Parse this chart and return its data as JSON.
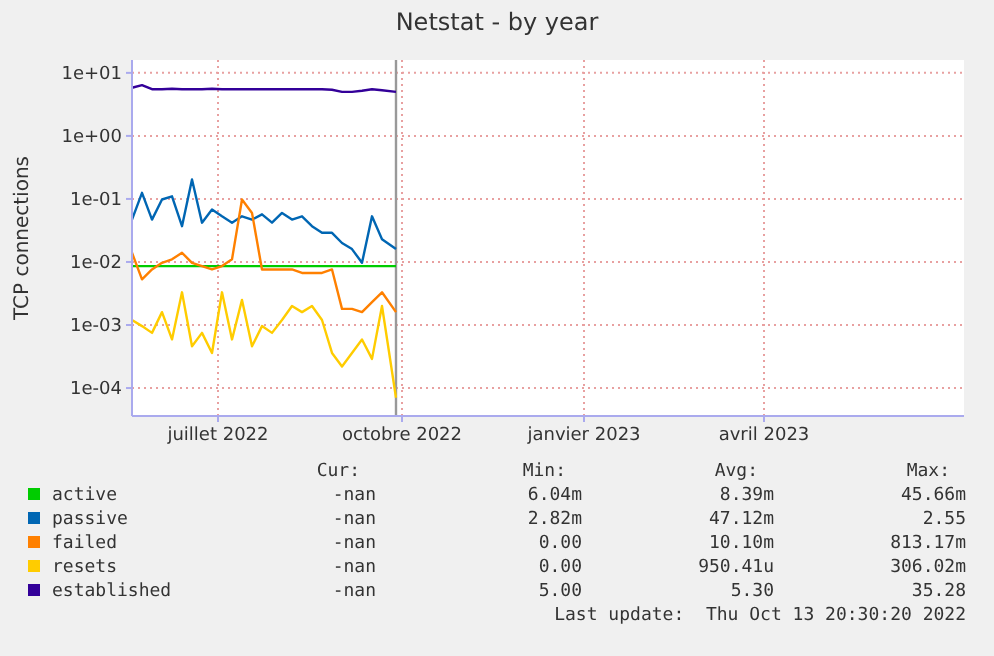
{
  "chart_data": {
    "type": "line",
    "title": "Netstat - by year",
    "ylabel": "TCP connections",
    "log": "y",
    "grid": true,
    "legend": "bottom",
    "x": [
      "2022-06-03",
      "2022-06-08",
      "2022-06-13",
      "2022-06-18",
      "2022-06-23",
      "2022-06-28",
      "2022-07-03",
      "2022-07-08",
      "2022-07-13",
      "2022-07-18",
      "2022-07-23",
      "2022-07-28",
      "2022-08-02",
      "2022-08-07",
      "2022-08-12",
      "2022-08-17",
      "2022-08-22",
      "2022-08-27",
      "2022-09-01",
      "2022-09-06",
      "2022-09-11",
      "2022-09-16",
      "2022-09-21",
      "2022-09-26",
      "2022-10-01",
      "2022-10-06",
      "2022-10-13"
    ],
    "xlim": [
      "2022-06-03",
      "2023-07-24"
    ],
    "xticks": [
      {
        "value": "2022-07-16",
        "label": "juillet 2022"
      },
      {
        "value": "2022-10-16",
        "label": "octobre 2022"
      },
      {
        "value": "2023-01-15",
        "label": "janvier 2023"
      },
      {
        "value": "2023-04-15",
        "label": "avril 2023"
      }
    ],
    "ylim": [
      3.6e-05,
      16
    ],
    "yticks": [
      {
        "value": 10,
        "label": "1e+01"
      },
      {
        "value": 1,
        "label": "1e+00"
      },
      {
        "value": 0.1,
        "label": "1e-01"
      },
      {
        "value": 0.01,
        "label": "1e-02"
      },
      {
        "value": 0.001,
        "label": "1e-03"
      },
      {
        "value": 0.0001,
        "label": "1e-04"
      }
    ],
    "series": [
      {
        "name": "active",
        "color": "#00cc00",
        "values": [
          0.0086,
          0.0086,
          0.0086,
          0.0086,
          0.0086,
          0.0086,
          0.0086,
          0.0086,
          0.0086,
          0.0086,
          0.0086,
          0.0086,
          0.0086,
          0.0086,
          0.0086,
          0.0086,
          0.0086,
          0.0086,
          0.0086,
          0.0086,
          0.0086,
          0.0086,
          0.0086,
          0.0086,
          0.0086,
          0.0086,
          0.0086
        ]
      },
      {
        "name": "passive",
        "color": "#0066b3",
        "values": [
          0.047,
          0.125,
          0.047,
          0.098,
          0.11,
          0.037,
          0.204,
          0.042,
          0.068,
          0.053,
          0.042,
          0.053,
          0.047,
          0.057,
          0.042,
          0.06,
          0.047,
          0.053,
          0.037,
          0.029,
          0.029,
          0.02,
          0.016,
          0.0097,
          0.053,
          0.023,
          0.016
        ]
      },
      {
        "name": "failed",
        "color": "#ff8000",
        "values": [
          0.014,
          0.0053,
          0.0076,
          0.0097,
          0.011,
          0.014,
          0.0097,
          0.0086,
          0.0076,
          0.0086,
          0.011,
          0.098,
          0.06,
          0.0076,
          0.0076,
          0.0076,
          0.0076,
          0.0067,
          0.0067,
          0.0067,
          0.0076,
          0.0018,
          0.0018,
          0.0016,
          0.0023,
          0.0033,
          0.0016
        ]
      },
      {
        "name": "resets",
        "color": "#ffcc00",
        "values": [
          0.0012,
          0.00096,
          0.00075,
          0.0016,
          0.00059,
          0.0033,
          0.00046,
          0.00075,
          0.00036,
          0.0033,
          0.00059,
          0.0025,
          0.00046,
          0.00096,
          0.00075,
          0.0012,
          0.002,
          0.0016,
          0.002,
          0.0012,
          0.00036,
          0.00022,
          0.00036,
          0.00059,
          0.00029,
          0.002,
          7e-05
        ]
      },
      {
        "name": "established",
        "color": "#330099",
        "values": [
          5.8,
          6.4,
          5.5,
          5.5,
          5.6,
          5.5,
          5.5,
          5.5,
          5.6,
          5.5,
          5.5,
          5.5,
          5.5,
          5.5,
          5.5,
          5.5,
          5.5,
          5.5,
          5.5,
          5.5,
          5.4,
          5.0,
          5.0,
          5.2,
          5.5,
          5.3,
          5.0
        ]
      }
    ],
    "ref_lines": [
      {
        "axis": "x",
        "value": "2022-10-13",
        "color": "#999999"
      }
    ],
    "annotations": [
      "Cur:",
      "Min:",
      "Avg:",
      "Max:",
      "-nan",
      "6.04m",
      "8.39m",
      "45.66m",
      "-nan",
      "2.82m",
      "47.12m",
      "2.55",
      "-nan",
      "0.00",
      "10.10m",
      "813.17m",
      "-nan",
      "0.00",
      "950.41u",
      "306.02m",
      "-nan",
      "5.00",
      "5.30",
      "35.28",
      "Last update:  Thu Oct 13 20:30:20 2022"
    ]
  }
}
